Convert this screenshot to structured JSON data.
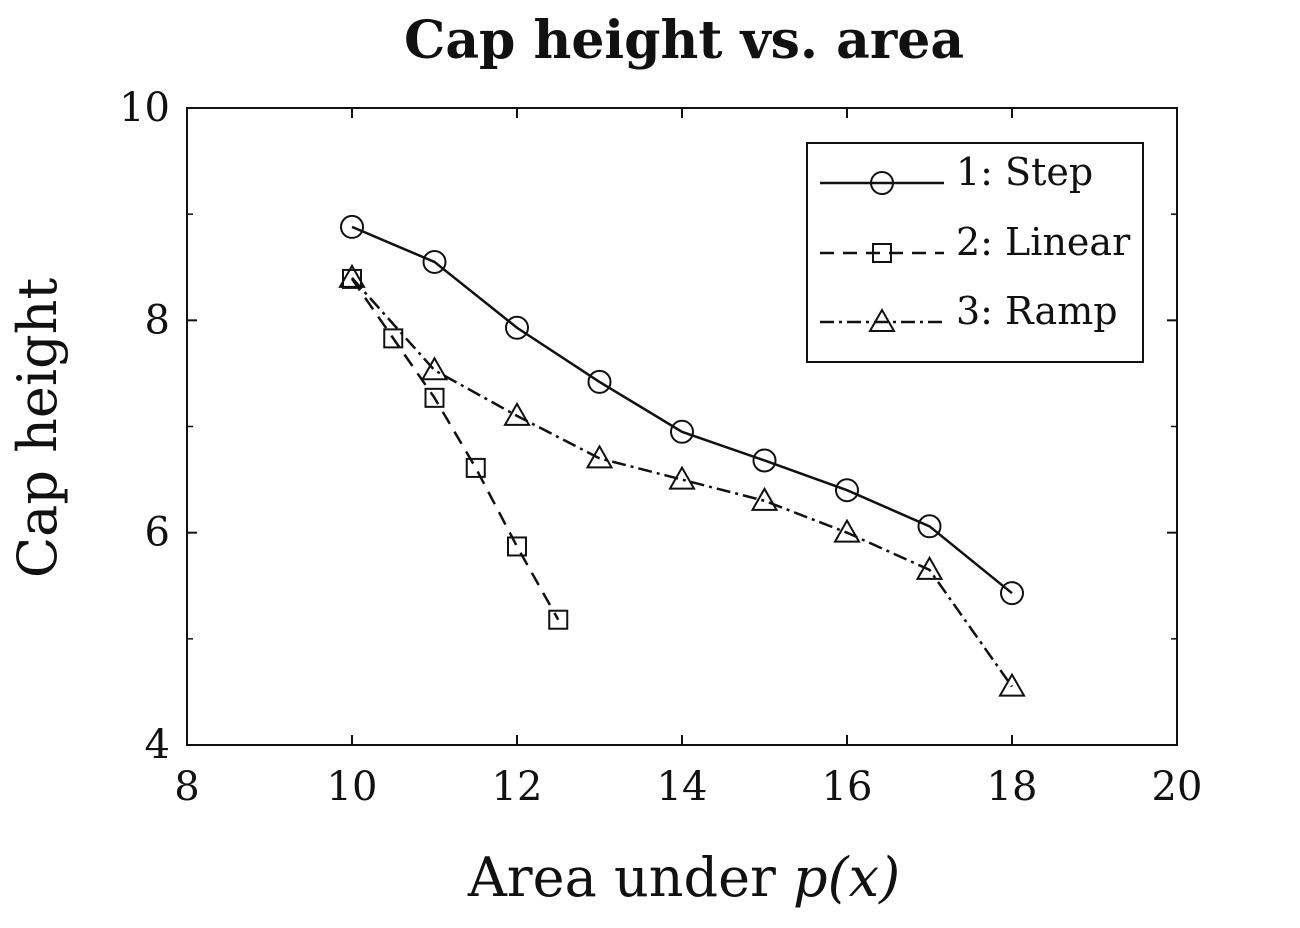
{
  "chart_data": {
    "type": "line",
    "title": "Cap height vs. area",
    "xlabel": "Area under",
    "xlabel_math": "p(x)",
    "ylabel": "Cap height",
    "xlim": [
      8,
      20
    ],
    "ylim": [
      4,
      10
    ],
    "xticks": [
      "8",
      "10",
      "12",
      "14",
      "16",
      "18",
      "20"
    ],
    "yticks": [
      "4",
      "6",
      "8",
      "10"
    ],
    "grid": false,
    "legend_position": "top-right",
    "series": [
      {
        "name": "1: Step",
        "line": "solid",
        "marker": "circle",
        "x": [
          10,
          11,
          12,
          13,
          14,
          15,
          16,
          17,
          18
        ],
        "y": [
          8.88,
          8.55,
          7.93,
          7.42,
          6.95,
          6.68,
          6.4,
          6.06,
          5.43
        ]
      },
      {
        "name": "2: Linear",
        "line": "dashed",
        "marker": "square",
        "x": [
          10,
          10.5,
          11,
          11.5,
          12,
          12.5
        ],
        "y": [
          8.39,
          7.83,
          7.27,
          6.61,
          5.87,
          5.18
        ]
      },
      {
        "name": "3: Ramp",
        "line": "dashdot",
        "marker": "triangle",
        "x": [
          10,
          11,
          12,
          13,
          14,
          15,
          16,
          17,
          18
        ],
        "y": [
          8.4,
          7.53,
          7.1,
          6.7,
          6.5,
          6.3,
          6.0,
          5.65,
          4.55
        ]
      }
    ]
  }
}
